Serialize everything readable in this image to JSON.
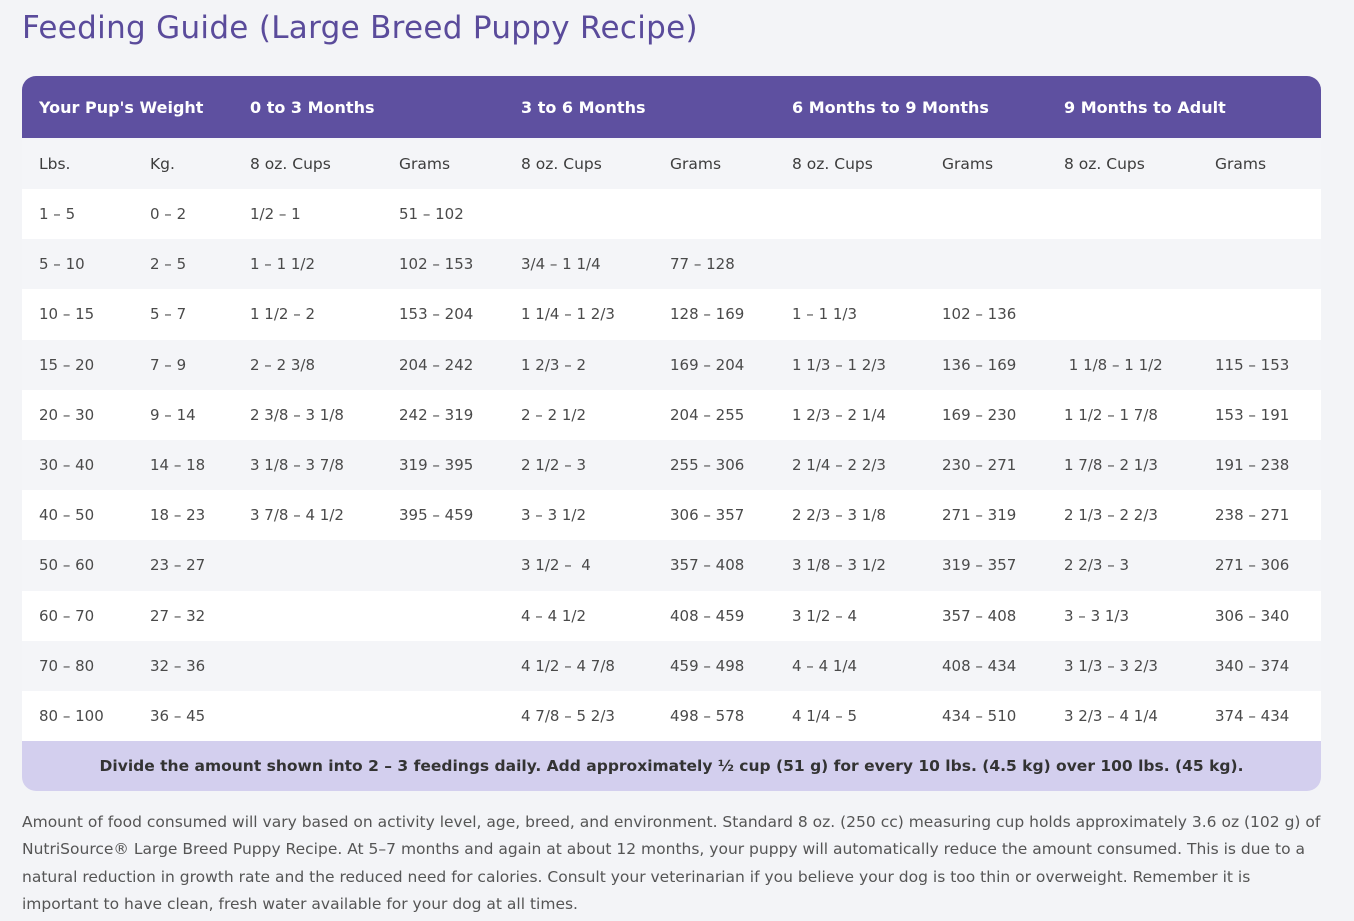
{
  "title": "Feeding Guide (Large Breed Puppy Recipe)",
  "header": [
    "Your Pup's Weight",
    "0 to 3 Months",
    "3 to 6 Months",
    "6 Months to 9 Months",
    "9 Months to Adult"
  ],
  "subheader": [
    "Lbs.",
    "Kg.",
    "8 oz. Cups",
    "Grams",
    "8 oz. Cups",
    "Grams",
    "8 oz. Cups",
    "Grams",
    "8 oz. Cups",
    "Grams"
  ],
  "rows": [
    [
      "1 – 5",
      "0 – 2",
      "1/2 – 1",
      "51 – 102",
      "",
      "",
      "",
      "",
      "",
      ""
    ],
    [
      "5 – 10",
      "2 – 5",
      "1 – 1 1/2",
      "102 – 153",
      "3/4 – 1 1/4",
      "77 – 128",
      "",
      "",
      "",
      ""
    ],
    [
      "10 – 15",
      "5 – 7",
      "1 1/2 – 2",
      "153 – 204",
      "1 1/4 – 1 2/3",
      "128 – 169",
      "1 – 1 1/3",
      "102 – 136",
      "",
      ""
    ],
    [
      "15 – 20",
      "7 – 9",
      "2 – 2 3/8",
      "204 – 242",
      "1 2/3 – 2",
      "169 – 204",
      "1 1/3 – 1 2/3",
      "136 – 169",
      " 1 1/8 – 1 1/2",
      "115 – 153"
    ],
    [
      "20 – 30",
      "9 – 14",
      "2 3/8 – 3 1/8",
      "242 – 319",
      "2 – 2 1/2",
      "204 – 255",
      "1 2/3 – 2 1/4",
      "169 – 230",
      "1 1/2 – 1 7/8",
      "153 – 191"
    ],
    [
      "30 – 40",
      "14 – 18",
      "3 1/8 – 3 7/8",
      "319 – 395",
      "2 1/2 – 3",
      "255 – 306",
      "2 1/4 – 2 2/3",
      "230 – 271",
      "1 7/8 – 2 1/3",
      "191 – 238"
    ],
    [
      "40 – 50",
      "18 – 23",
      "3 7/8 – 4 1/2",
      "395 – 459",
      "3 – 3 1/2",
      "306 – 357",
      "2 2/3 – 3 1/8",
      "271 – 319",
      "2 1/3 – 2 2/3",
      "238 – 271"
    ],
    [
      "50 – 60",
      "23 – 27",
      "",
      "",
      "3 1/2 –  4",
      "357 – 408",
      "3 1/8 – 3 1/2",
      "319 – 357",
      "2 2/3 – 3",
      "271 – 306"
    ],
    [
      "60 – 70",
      "27 – 32",
      "",
      "",
      "4 – 4 1/2",
      "408 – 459",
      "3 1/2 – 4",
      "357 – 408",
      "3 – 3 1/3",
      "306 – 340"
    ],
    [
      "70 – 80",
      "32 – 36",
      "",
      "",
      "4 1/2 – 4 7/8",
      "459 – 498",
      "4 – 4 1/4",
      "408 – 434",
      "3 1/3 – 3 2/3",
      "340 – 374"
    ],
    [
      "80 – 100",
      "36 – 45",
      "",
      "",
      "4 7/8 – 5 2/3",
      "498 – 578",
      "4 1/4 – 5",
      "434 – 510",
      "3 2/3 – 4 1/4",
      "374 – 434"
    ]
  ],
  "footer": "Divide the amount shown into 2 – 3 feedings daily. Add approximately ½ cup (51 g) for every 10 lbs. (4.5 kg) over 100 lbs. (45 kg).",
  "note": "Amount of food consumed will vary based on activity level, age, breed, and environment. Standard 8 oz. (250 cc) measuring cup holds approximately 3.6 oz (102 g) of NutriSource® Large Breed Puppy Recipe. At 5–7 months and again at about 12 months, your puppy will automatically reduce the amount consumed. This is due to a natural reduction in growth rate and the reduced need for calories. Consult your veterinarian if you believe your dog is too thin or overweight. Remember it is important to have clean, fresh water available for your dog at all times.",
  "colors": {
    "header": "#5e50a0",
    "title": "#5a4b9b",
    "footer": "#d3cfee"
  }
}
